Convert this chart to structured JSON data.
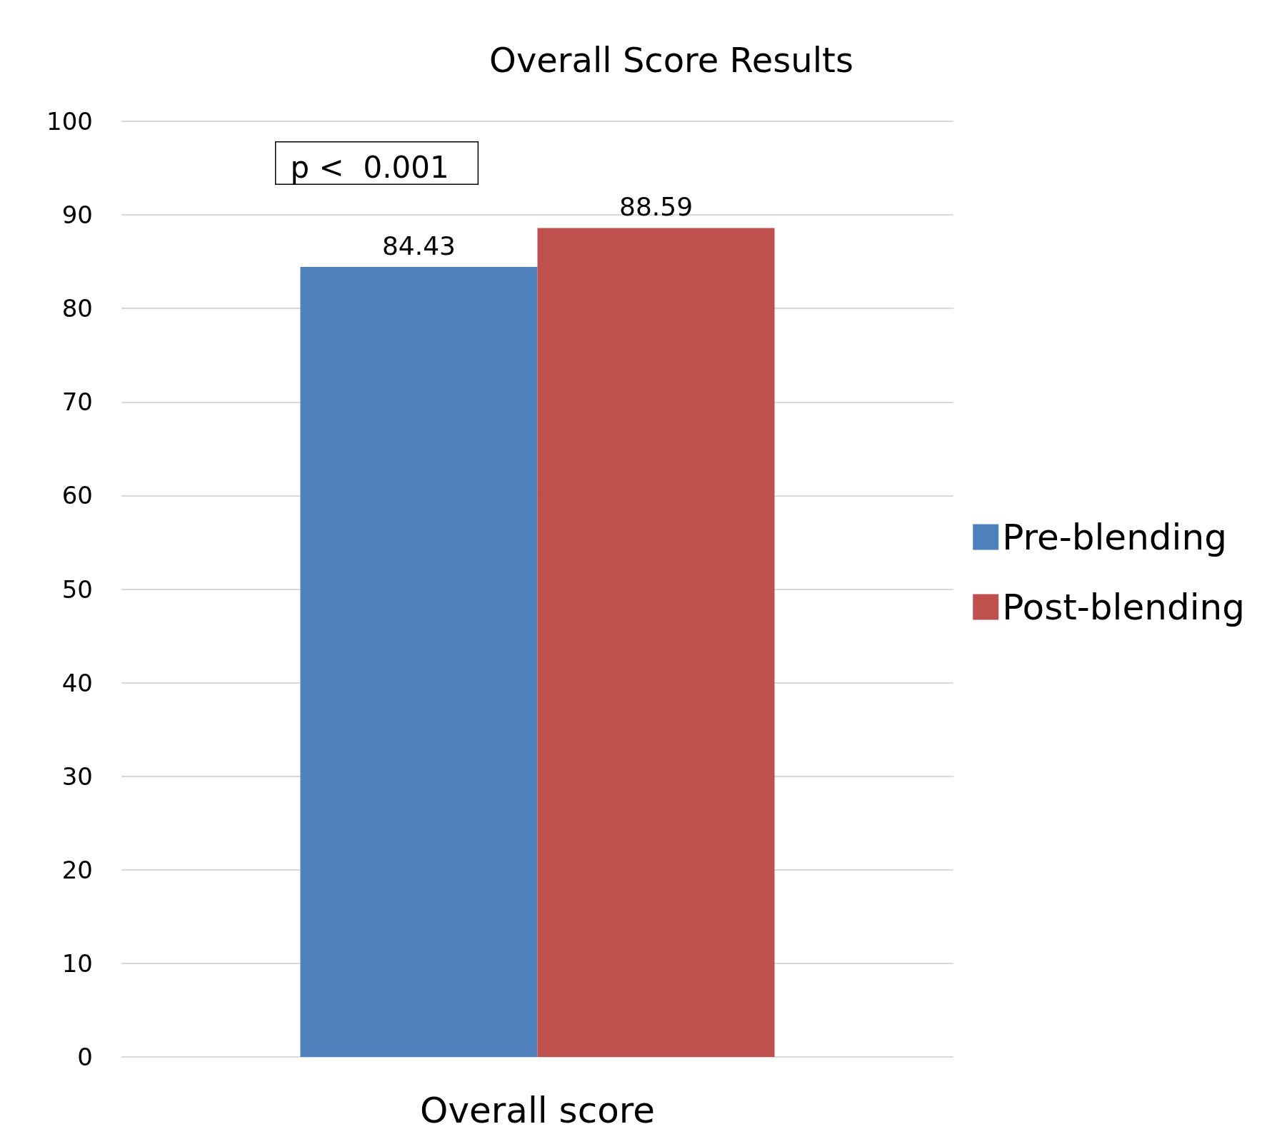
{
  "chart_data": {
    "type": "bar",
    "title": "Overall Score Results",
    "categories": [
      "Overall score"
    ],
    "series": [
      {
        "name": "Pre-blending",
        "color": "#4f81bd",
        "values": [
          84.43
        ]
      },
      {
        "name": "Post-blending",
        "color": "#c0504d",
        "values": [
          88.59
        ]
      }
    ],
    "ylim": [
      0,
      100
    ],
    "yticks": [
      0,
      10,
      20,
      30,
      40,
      50,
      60,
      70,
      80,
      90,
      100
    ],
    "grid": "y",
    "legend": "right",
    "data_labels": true,
    "annotations": [
      "p <  0.001"
    ]
  }
}
